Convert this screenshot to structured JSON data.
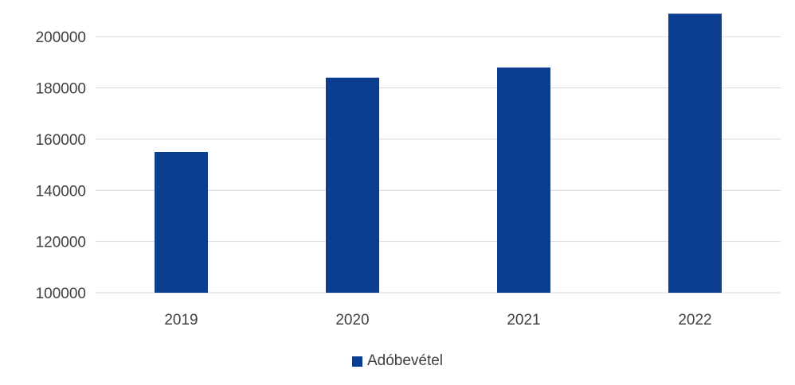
{
  "chart_data": {
    "type": "bar",
    "title": "",
    "xlabel": "",
    "ylabel": "",
    "categories": [
      "2019",
      "2020",
      "2021",
      "2022"
    ],
    "series": [
      {
        "name": "Adóbevétel",
        "values": [
          155000,
          184000,
          188000,
          209000
        ]
      }
    ],
    "ylim": [
      100000,
      210000
    ],
    "yticks": [
      100000,
      120000,
      140000,
      160000,
      180000,
      200000
    ],
    "ytick_labels": [
      "100000",
      "120000",
      "140000",
      "160000",
      "180000",
      "200000"
    ],
    "grid": true,
    "legend": "bottom",
    "colors": {
      "bar": "#0b3d91",
      "grid": "#d9d9d9",
      "text": "#404040"
    }
  }
}
